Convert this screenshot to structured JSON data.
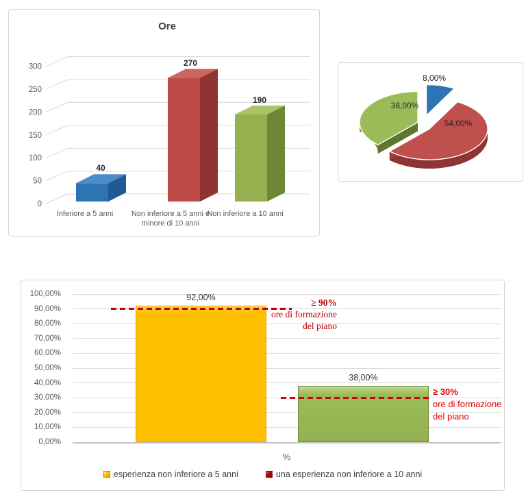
{
  "page": {
    "background": "#FFFFFF"
  },
  "chart_data": [
    {
      "id": "ore",
      "type": "bar",
      "style": "3d-column",
      "title": "Ore",
      "categories": [
        "Inferiore a 5 anni",
        "Non inferiore a 5 anni e minore di 10 anni",
        "Non inferiore a 10 anni"
      ],
      "category_lines": [
        [
          "Inferiore a 5 anni"
        ],
        [
          "Non inferiore a 5 anni e",
          "minore di 10 anni"
        ],
        [
          "Non inferiore a 10 anni"
        ]
      ],
      "values": [
        40,
        270,
        190
      ],
      "value_labels": [
        "40",
        "270",
        "190"
      ],
      "yticks": [
        "0",
        "50",
        "100",
        "150",
        "200",
        "250",
        "300"
      ],
      "ylim": [
        0,
        300
      ],
      "grid": true,
      "legend": "none",
      "colors": [
        "#2E74B5",
        "#C0504D",
        "#94B04F"
      ]
    },
    {
      "id": "experience-pie",
      "type": "pie",
      "style": "3d-exploded",
      "slices": [
        {
          "label": "8,00%",
          "value": 8,
          "color": "#2E74B5"
        },
        {
          "label": "54,00%",
          "value": 54,
          "color": "#C0504D"
        },
        {
          "label": "38,00%",
          "value": 38,
          "color": "#94B04F"
        }
      ]
    },
    {
      "id": "threshold-compare",
      "type": "bar",
      "categories": [
        "%"
      ],
      "xlabel": "%",
      "series": [
        {
          "name": "esperienza non inferiore a 5 anni",
          "values": [
            92
          ],
          "label": "92,00%",
          "color": "#FFC000",
          "legend_color": "#FFC000"
        },
        {
          "name": "una esperienza non inferiore a 10 anni",
          "values": [
            38
          ],
          "label": "38,00%",
          "color": "#9BBB59",
          "legend_color": "#C00000"
        }
      ],
      "yticks": [
        "100,00%",
        "90,00%",
        "80,00%",
        "70,00%",
        "60,00%",
        "50,00%",
        "40,00%",
        "30,00%",
        "20,00%",
        "10,00%",
        "0,00%"
      ],
      "ylim": [
        0,
        100
      ],
      "grid": true,
      "legend_position": "bottom",
      "thresholds": [
        {
          "value": 90,
          "title": "≥ 90%",
          "note": [
            "ore di formazione",
            "del piano"
          ],
          "color": "#C00000",
          "line_style": "dashed"
        },
        {
          "value": 30,
          "title": "≥ 30%",
          "note": [
            "ore di formazione",
            "del piano"
          ],
          "color": "#E10000",
          "line_style": "dashed"
        }
      ]
    }
  ]
}
